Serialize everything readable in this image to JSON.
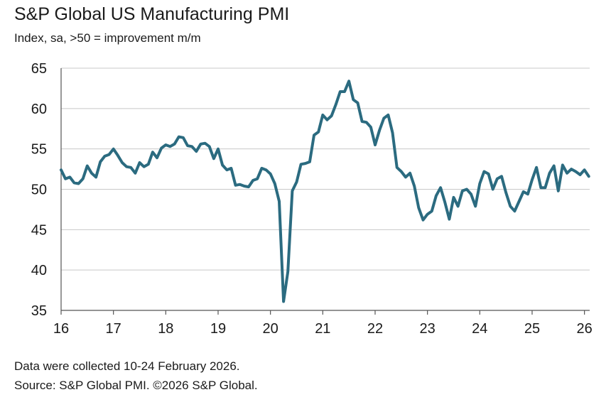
{
  "header": {
    "title": "S&P Global US Manufacturing PMI",
    "subtitle": "Index, sa, >50 = improvement m/m"
  },
  "footer": {
    "note": "Data were collected 10-24 February 2026.",
    "source": "Source: S&P Global PMI. ©2026 S&P Global."
  },
  "colors": {
    "line": "#2b6b80",
    "grid": "#c8c8c8",
    "axis": "#555555"
  },
  "chart_data": {
    "type": "line",
    "title": "S&P Global US Manufacturing PMI",
    "subtitle": "Index, sa, >50 = improvement m/m",
    "xlabel": "",
    "ylabel": "",
    "ylim": [
      35,
      65
    ],
    "yticks": [
      35,
      40,
      45,
      50,
      55,
      60,
      65
    ],
    "xticks": [
      "16",
      "17",
      "18",
      "19",
      "20",
      "21",
      "22",
      "23",
      "24",
      "25",
      "26"
    ],
    "xrange": [
      2016.0,
      2026.1
    ],
    "grid": true,
    "legend": "none",
    "series": [
      {
        "x": [
          2016.0,
          2016.083,
          2016.167,
          2016.25,
          2016.333,
          2016.417,
          2016.5,
          2016.583,
          2016.667,
          2016.75,
          2016.833,
          2016.917,
          2017.0,
          2017.083,
          2017.167,
          2017.25,
          2017.333,
          2017.417,
          2017.5,
          2017.583,
          2017.667,
          2017.75,
          2017.833,
          2017.917,
          2018.0,
          2018.083,
          2018.167,
          2018.25,
          2018.333,
          2018.417,
          2018.5,
          2018.583,
          2018.667,
          2018.75,
          2018.833,
          2018.917,
          2019.0,
          2019.083,
          2019.167,
          2019.25,
          2019.333,
          2019.417,
          2019.5,
          2019.583,
          2019.667,
          2019.75,
          2019.833,
          2019.917,
          2020.0,
          2020.083,
          2020.167,
          2020.25,
          2020.333,
          2020.417,
          2020.5,
          2020.583,
          2020.667,
          2020.75,
          2020.833,
          2020.917,
          2021.0,
          2021.083,
          2021.167,
          2021.25,
          2021.333,
          2021.417,
          2021.5,
          2021.583,
          2021.667,
          2021.75,
          2021.833,
          2021.917,
          2022.0,
          2022.083,
          2022.167,
          2022.25,
          2022.333,
          2022.417,
          2022.5,
          2022.583,
          2022.667,
          2022.75,
          2022.833,
          2022.917,
          2023.0,
          2023.083,
          2023.167,
          2023.25,
          2023.333,
          2023.417,
          2023.5,
          2023.583,
          2023.667,
          2023.75,
          2023.833,
          2023.917,
          2024.0,
          2024.083,
          2024.167,
          2024.25,
          2024.333,
          2024.417,
          2024.5,
          2024.583,
          2024.667,
          2024.75,
          2024.833,
          2024.917,
          2025.0,
          2025.083,
          2025.167,
          2025.25,
          2025.333,
          2025.417,
          2025.5,
          2025.583,
          2025.667,
          2025.75,
          2025.833,
          2025.917,
          2026.0,
          2026.083
        ],
        "values": [
          52.4,
          51.3,
          51.5,
          50.8,
          50.7,
          51.3,
          52.9,
          52.0,
          51.5,
          53.4,
          54.1,
          54.3,
          55.0,
          54.2,
          53.3,
          52.8,
          52.7,
          52.0,
          53.3,
          52.8,
          53.1,
          54.6,
          53.9,
          55.1,
          55.5,
          55.3,
          55.6,
          56.5,
          56.4,
          55.4,
          55.3,
          54.7,
          55.6,
          55.7,
          55.3,
          53.8,
          55.0,
          53.0,
          52.4,
          52.6,
          50.5,
          50.6,
          50.4,
          50.3,
          51.1,
          51.3,
          52.6,
          52.4,
          51.9,
          50.7,
          48.5,
          36.1,
          39.8,
          49.8,
          50.9,
          53.1,
          53.2,
          53.4,
          56.7,
          57.1,
          59.2,
          58.6,
          59.1,
          60.5,
          62.1,
          62.1,
          63.4,
          61.1,
          60.7,
          58.4,
          58.3,
          57.7,
          55.5,
          57.3,
          58.8,
          59.2,
          57.0,
          52.7,
          52.2,
          51.5,
          52.0,
          50.4,
          47.7,
          46.2,
          46.9,
          47.3,
          49.2,
          50.2,
          48.4,
          46.3,
          49.0,
          47.9,
          49.8,
          50.0,
          49.4,
          47.9,
          50.7,
          52.2,
          51.9,
          50.0,
          51.3,
          51.6,
          49.6,
          47.9,
          47.3,
          48.5,
          49.7,
          49.4,
          51.2,
          52.7,
          50.2,
          50.2,
          52.0,
          52.9,
          49.8,
          53.0,
          52.0,
          52.5,
          52.2,
          51.8,
          52.4,
          51.6
        ]
      }
    ]
  }
}
